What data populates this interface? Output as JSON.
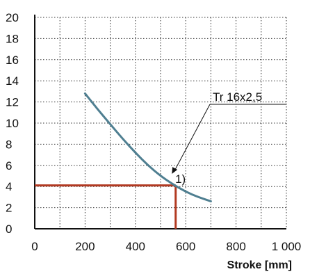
{
  "chart_data": {
    "type": "line",
    "title": "",
    "ylabel": "",
    "xlabel": "Stroke [mm]",
    "xlim": [
      0,
      1000
    ],
    "ylim": [
      0,
      20
    ],
    "x_ticks": [
      0,
      200,
      400,
      600,
      800,
      1000
    ],
    "x_tick_labels": [
      "0",
      "200",
      "400",
      "600",
      "800",
      "1 000"
    ],
    "y_ticks": [
      0,
      2,
      4,
      6,
      8,
      10,
      12,
      14,
      16,
      18,
      20
    ],
    "y_tick_labels": [
      "0",
      "2",
      "4",
      "6",
      "8",
      "10",
      "12",
      "14",
      "16",
      "18",
      "20"
    ],
    "grid": true,
    "series": [
      {
        "name": "Tr 16x2,5",
        "color": "#4f7f91",
        "x": [
          200,
          250,
          300,
          350,
          400,
          450,
          500,
          550,
          600,
          650,
          700
        ],
        "y": [
          12.8,
          11.3,
          9.9,
          8.5,
          7.2,
          6.0,
          5.0,
          4.2,
          3.5,
          3.0,
          2.6
        ]
      }
    ],
    "reference_lines": {
      "color": "#b23a22",
      "x": 560,
      "y": 4.1
    },
    "annotations": [
      {
        "label": "1)",
        "x": 550,
        "y": 5.0
      },
      {
        "label": "Tr 16x2,5",
        "points_to_x": 545,
        "points_to_y": 5.2
      }
    ]
  }
}
